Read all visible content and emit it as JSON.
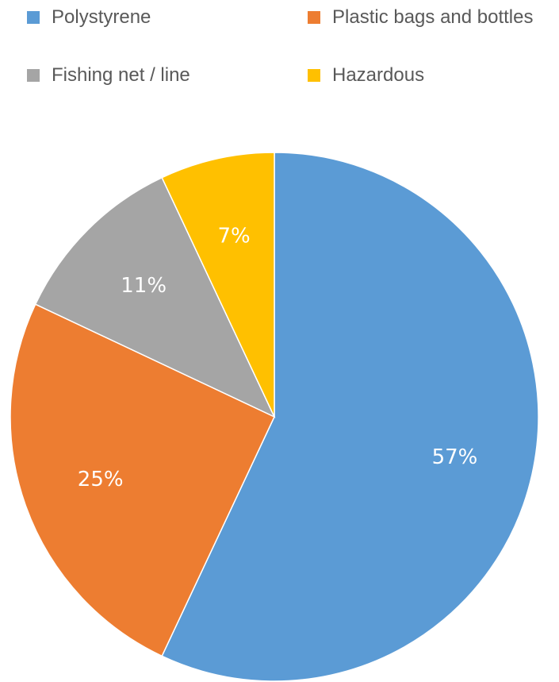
{
  "chart_data": {
    "type": "pie",
    "title": "",
    "legend_position": "top",
    "categories": [
      "Polystyrene",
      "Plastic bags and bottles",
      "Fishing net / line",
      "Hazardous"
    ],
    "values": [
      57,
      25,
      11,
      7
    ],
    "value_labels": [
      "57%",
      "25%",
      "11%",
      "7%"
    ],
    "colors": [
      "#5B9BD5",
      "#ED7D31",
      "#A5A5A5",
      "#FFC000"
    ],
    "start_angle_deg": 0,
    "direction": "clockwise"
  }
}
